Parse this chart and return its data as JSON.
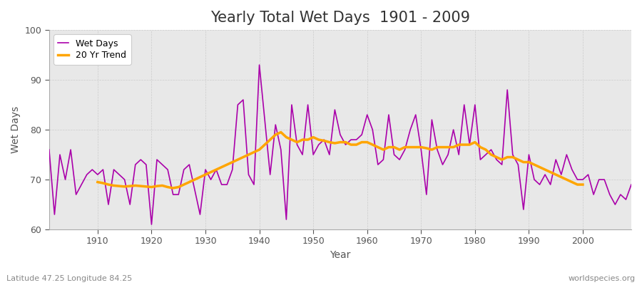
{
  "title": "Yearly Total Wet Days  1901 - 2009",
  "xlabel": "Year",
  "ylabel": "Wet Days",
  "subtitle": "Latitude 47.25 Longitude 84.25",
  "watermark": "worldspecies.org",
  "ylim": [
    60,
    100
  ],
  "xlim": [
    1901,
    2009
  ],
  "wet_days_color": "#aa00aa",
  "trend_color": "#ffa500",
  "fig_bg_color": "#ffffff",
  "plot_bg_color": "#e8e8e8",
  "years": [
    1901,
    1902,
    1903,
    1904,
    1905,
    1906,
    1907,
    1908,
    1909,
    1910,
    1911,
    1912,
    1913,
    1914,
    1915,
    1916,
    1917,
    1918,
    1919,
    1920,
    1921,
    1922,
    1923,
    1924,
    1925,
    1926,
    1927,
    1928,
    1929,
    1930,
    1931,
    1932,
    1933,
    1934,
    1935,
    1936,
    1937,
    1938,
    1939,
    1940,
    1941,
    1942,
    1943,
    1944,
    1945,
    1946,
    1947,
    1948,
    1949,
    1950,
    1951,
    1952,
    1953,
    1954,
    1955,
    1956,
    1957,
    1958,
    1959,
    1960,
    1961,
    1962,
    1963,
    1964,
    1965,
    1966,
    1967,
    1968,
    1969,
    1970,
    1971,
    1972,
    1973,
    1974,
    1975,
    1976,
    1977,
    1978,
    1979,
    1980,
    1981,
    1982,
    1983,
    1984,
    1985,
    1986,
    1987,
    1988,
    1989,
    1990,
    1991,
    1992,
    1993,
    1994,
    1995,
    1996,
    1997,
    1998,
    1999,
    2000,
    2001,
    2002,
    2003,
    2004,
    2005,
    2006,
    2007,
    2008,
    2009
  ],
  "wet_days": [
    76,
    63,
    75,
    70,
    76,
    67,
    69,
    71,
    72,
    71,
    72,
    65,
    72,
    71,
    70,
    65,
    73,
    74,
    73,
    61,
    74,
    73,
    72,
    67,
    67,
    72,
    73,
    68,
    63,
    72,
    70,
    72,
    69,
    69,
    72,
    85,
    86,
    71,
    69,
    93,
    82,
    71,
    81,
    76,
    62,
    85,
    77,
    75,
    85,
    75,
    77,
    78,
    75,
    84,
    79,
    77,
    78,
    78,
    79,
    83,
    80,
    73,
    74,
    83,
    75,
    74,
    76,
    80,
    83,
    76,
    67,
    82,
    76,
    73,
    75,
    80,
    75,
    85,
    77,
    85,
    74,
    75,
    76,
    74,
    73,
    88,
    75,
    73,
    64,
    75,
    70,
    69,
    71,
    69,
    74,
    71,
    75,
    72,
    70,
    70,
    71,
    67,
    70,
    70,
    67,
    65,
    67,
    66,
    69
  ],
  "trend_years": [
    1910,
    1911,
    1912,
    1913,
    1914,
    1915,
    1916,
    1917,
    1918,
    1919,
    1920,
    1921,
    1922,
    1923,
    1924,
    1925,
    1926,
    1927,
    1928,
    1929,
    1930,
    1931,
    1932,
    1933,
    1934,
    1935,
    1936,
    1937,
    1938,
    1939,
    1940,
    1941,
    1942,
    1943,
    1944,
    1945,
    1946,
    1947,
    1948,
    1949,
    1950,
    1951,
    1952,
    1953,
    1954,
    1955,
    1956,
    1957,
    1958,
    1959,
    1960,
    1961,
    1962,
    1963,
    1964,
    1965,
    1966,
    1967,
    1968,
    1969,
    1970,
    1971,
    1972,
    1973,
    1974,
    1975,
    1976,
    1977,
    1978,
    1979,
    1980,
    1981,
    1982,
    1983,
    1984,
    1985,
    1986,
    1987,
    1988,
    1989,
    1990,
    1991,
    1992,
    1993,
    1994,
    1995,
    1996,
    1997,
    1998,
    1999,
    2000
  ],
  "trend_values": [
    69.5,
    69.3,
    69.0,
    68.8,
    68.7,
    68.6,
    68.7,
    68.8,
    68.7,
    68.6,
    68.5,
    68.7,
    68.8,
    68.5,
    68.3,
    68.5,
    69.0,
    69.5,
    70.0,
    70.5,
    71.0,
    71.5,
    72.0,
    72.5,
    73.0,
    73.5,
    74.0,
    74.5,
    75.0,
    75.5,
    76.0,
    77.0,
    78.0,
    79.0,
    79.5,
    78.5,
    78.0,
    77.5,
    78.0,
    78.0,
    78.5,
    78.0,
    77.8,
    77.5,
    77.3,
    77.5,
    77.5,
    77.0,
    77.0,
    77.5,
    77.5,
    77.0,
    76.5,
    76.0,
    76.5,
    76.5,
    76.0,
    76.5,
    76.5,
    76.5,
    76.5,
    76.3,
    76.0,
    76.5,
    76.5,
    76.5,
    76.5,
    77.0,
    77.0,
    77.0,
    77.5,
    76.5,
    76.0,
    75.0,
    74.5,
    74.0,
    74.5,
    74.5,
    74.0,
    73.5,
    73.5,
    73.0,
    72.5,
    72.0,
    71.5,
    71.0,
    70.5,
    70.0,
    69.5,
    69.0,
    69.0
  ]
}
